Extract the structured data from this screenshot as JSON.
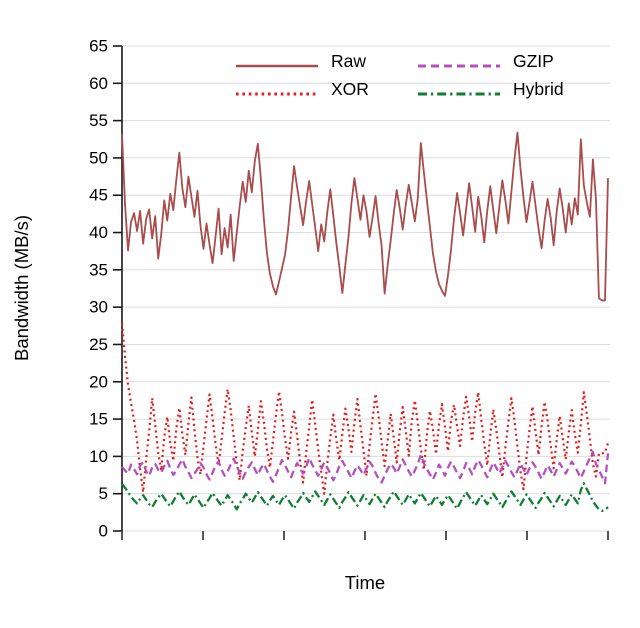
{
  "figure": {
    "title": "",
    "background": "#FFFFFF"
  },
  "chart_data": {
    "type": "line",
    "title": "",
    "xlabel": "Time",
    "ylabel": "Bandwidth (MB/s)",
    "ylim": [
      0,
      65
    ],
    "yticks": [
      0,
      5,
      10,
      15,
      20,
      25,
      30,
      35,
      40,
      45,
      50,
      55,
      60,
      65
    ],
    "x_tick_count": 7,
    "x_tick_labels": [],
    "grid": "horizontal",
    "grid_color": "#DCDCDC",
    "axis_color": "#1A1A1A",
    "tick_label_color": "#000000",
    "legend_position": "top-inside",
    "series": [
      {
        "name": "Raw",
        "color": "#A94C4C",
        "linestyle": "solid",
        "values": [
          53.2,
          43.8,
          37.6,
          41.4,
          42.6,
          40.2,
          42.9,
          38.5,
          41.8,
          43.1,
          39.2,
          42.2,
          36.5,
          39.8,
          44.3,
          41.6,
          45.2,
          43.0,
          47.1,
          50.7,
          45.9,
          43.4,
          47.5,
          44.8,
          42.1,
          45.6,
          40.9,
          37.8,
          41.2,
          38.4,
          35.9,
          39.5,
          43.2,
          37.1,
          40.6,
          38.0,
          42.4,
          36.2,
          39.9,
          43.6,
          46.8,
          44.1,
          48.3,
          45.4,
          49.6,
          51.9,
          47.2,
          41.8,
          37.3,
          34.5,
          32.8,
          31.7,
          33.4,
          35.2,
          37.0,
          40.3,
          44.7,
          48.9,
          46.1,
          43.5,
          41.0,
          44.2,
          46.9,
          43.8,
          40.7,
          37.5,
          41.1,
          38.8,
          42.7,
          45.8,
          42.3,
          38.6,
          35.4,
          31.9,
          35.7,
          39.3,
          43.9,
          47.3,
          44.5,
          41.7,
          45.0,
          42.8,
          39.4,
          42.0,
          44.9,
          41.3,
          38.2,
          31.8,
          35.6,
          38.9,
          42.5,
          45.7,
          43.3,
          40.4,
          43.7,
          46.4,
          44.0,
          41.5,
          44.6,
          52.0,
          48.1,
          44.4,
          40.8,
          37.2,
          34.8,
          33.1,
          32.2,
          31.5,
          34.3,
          37.7,
          41.9,
          45.3,
          42.6,
          39.6,
          43.1,
          46.6,
          43.4,
          40.1,
          44.8,
          42.2,
          38.7,
          42.9,
          46.2,
          43.0,
          39.9,
          43.5,
          47.0,
          44.3,
          41.2,
          45.5,
          49.8,
          53.4,
          48.6,
          44.7,
          41.4,
          44.1,
          46.8,
          43.6,
          40.5,
          37.9,
          41.6,
          44.5,
          42.0,
          38.3,
          42.8,
          45.9,
          43.2,
          40.0,
          43.9,
          41.1,
          44.6,
          42.4,
          52.5,
          46.3,
          44.0,
          42.1,
          49.8,
          44.5,
          31.2,
          30.9,
          30.9,
          47.3
        ]
      },
      {
        "name": "XOR",
        "color": "#E41A1C",
        "linestyle": "dotted",
        "values": [
          27.8,
          23.4,
          19.6,
          17.2,
          14.8,
          12.1,
          8.3,
          5.2,
          9.6,
          13.4,
          17.8,
          14.2,
          10.5,
          8.1,
          12.6,
          15.3,
          11.8,
          9.4,
          13.7,
          16.5,
          12.9,
          10.2,
          14.4,
          17.9,
          13.6,
          9.8,
          7.6,
          11.3,
          14.9,
          18.3,
          15.1,
          11.6,
          8.9,
          12.3,
          15.8,
          19.0,
          16.2,
          12.7,
          9.1,
          6.8,
          10.7,
          13.9,
          16.8,
          13.2,
          10.0,
          13.5,
          17.4,
          14.6,
          11.1,
          8.5,
          12.0,
          15.5,
          18.7,
          15.9,
          12.4,
          9.7,
          13.1,
          16.0,
          12.8,
          9.3,
          6.5,
          10.4,
          14.0,
          17.6,
          14.3,
          10.9,
          7.9,
          5.0,
          9.0,
          12.5,
          15.6,
          12.2,
          9.5,
          13.0,
          16.4,
          13.8,
          10.6,
          14.5,
          17.7,
          14.1,
          10.8,
          7.4,
          11.5,
          15.0,
          18.4,
          15.4,
          11.9,
          8.7,
          12.1,
          15.7,
          12.6,
          9.2,
          13.3,
          16.6,
          13.4,
          10.1,
          14.7,
          17.5,
          14.4,
          11.0,
          8.2,
          12.9,
          16.1,
          13.7,
          10.3,
          14.2,
          17.0,
          13.9,
          10.7,
          14.8,
          16.9,
          14.0,
          11.4,
          15.2,
          18.0,
          15.3,
          12.0,
          15.9,
          18.6,
          15.0,
          11.7,
          8.8,
          12.8,
          16.3,
          13.5,
          10.4,
          7.2,
          11.2,
          14.6,
          17.8,
          14.9,
          11.3,
          8.0,
          5.6,
          9.9,
          13.6,
          16.7,
          13.3,
          10.2,
          14.1,
          17.3,
          14.7,
          11.5,
          8.4,
          12.2,
          15.4,
          12.5,
          9.6,
          13.2,
          16.2,
          13.0,
          10.5,
          14.3,
          18.6,
          15.6,
          12.3,
          9.0,
          7.3,
          10.4,
          10.4,
          10.5,
          11.8
        ]
      },
      {
        "name": "GZIP",
        "color": "#B351BC",
        "linestyle": "dashed",
        "values": [
          8.6,
          8.1,
          7.7,
          8.9,
          8.3,
          7.6,
          8.8,
          9.2,
          8.0,
          7.4,
          8.5,
          9.0,
          8.2,
          7.8,
          8.7,
          9.4,
          8.4,
          7.5,
          8.1,
          8.9,
          9.6,
          8.6,
          7.9,
          7.1,
          7.7,
          8.3,
          9.1,
          8.5,
          7.6,
          6.9,
          7.8,
          8.8,
          9.3,
          8.2,
          7.4,
          8.0,
          8.9,
          9.7,
          8.7,
          7.8,
          7.0,
          7.9,
          8.6,
          9.2,
          8.3,
          7.5,
          8.4,
          9.0,
          8.1,
          7.3,
          6.6,
          7.5,
          8.5,
          9.5,
          8.8,
          8.0,
          7.2,
          8.2,
          9.1,
          8.4,
          7.7,
          8.6,
          9.8,
          8.9,
          8.1,
          7.4,
          8.3,
          9.2,
          8.5,
          7.7,
          6.8,
          7.6,
          8.7,
          9.4,
          8.6,
          7.9,
          7.1,
          8.0,
          8.8,
          8.2,
          7.5,
          8.4,
          9.3,
          8.7,
          7.8,
          7.0,
          6.5,
          7.4,
          8.3,
          9.0,
          8.5,
          7.7,
          8.6,
          9.6,
          8.8,
          8.0,
          7.3,
          8.1,
          9.0,
          10.2,
          9.1,
          8.3,
          7.6,
          6.9,
          7.8,
          8.9,
          8.2,
          7.4,
          8.5,
          9.3,
          8.6,
          7.8,
          7.1,
          8.0,
          9.1,
          8.4,
          7.6,
          8.7,
          9.5,
          8.8,
          8.0,
          7.2,
          8.2,
          9.2,
          8.5,
          7.7,
          8.6,
          9.4,
          8.7,
          7.9,
          7.2,
          8.1,
          9.0,
          8.3,
          7.5,
          8.4,
          9.2,
          8.6,
          7.8,
          7.0,
          7.9,
          8.8,
          8.1,
          7.3,
          8.2,
          9.1,
          8.4,
          7.7,
          8.5,
          9.3,
          8.7,
          7.9,
          7.1,
          8.0,
          8.9,
          9.8,
          10.6,
          9.0,
          8.2,
          7.3,
          6.4,
          10.4
        ]
      },
      {
        "name": "Hybrid",
        "color": "#0E7E33",
        "linestyle": "dashdot",
        "values": [
          6.3,
          5.8,
          5.2,
          4.6,
          4.1,
          3.7,
          4.3,
          4.8,
          4.2,
          3.6,
          3.2,
          3.9,
          4.5,
          5.0,
          4.4,
          3.8,
          3.3,
          4.0,
          4.7,
          5.3,
          4.6,
          4.0,
          3.5,
          4.2,
          4.9,
          4.3,
          3.7,
          3.1,
          3.8,
          4.4,
          5.1,
          4.5,
          3.9,
          3.4,
          4.1,
          4.8,
          4.2,
          3.6,
          2.9,
          3.7,
          4.3,
          5.0,
          4.4,
          3.8,
          4.5,
          5.2,
          4.6,
          4.0,
          3.4,
          4.1,
          4.7,
          4.1,
          3.5,
          4.2,
          4.8,
          4.2,
          3.6,
          3.0,
          3.8,
          4.4,
          5.1,
          4.5,
          3.9,
          4.6,
          5.3,
          4.7,
          4.1,
          3.5,
          4.2,
          4.9,
          4.3,
          3.7,
          3.1,
          3.9,
          4.5,
          5.2,
          4.6,
          4.0,
          3.4,
          4.1,
          4.8,
          4.2,
          3.6,
          4.3,
          5.0,
          4.4,
          3.8,
          3.2,
          4.0,
          4.6,
          5.3,
          4.7,
          4.1,
          3.5,
          4.2,
          4.9,
          4.3,
          3.7,
          4.4,
          5.1,
          4.5,
          3.9,
          3.3,
          4.0,
          4.7,
          4.1,
          3.5,
          4.2,
          4.8,
          4.2,
          3.6,
          3.0,
          3.8,
          4.5,
          5.2,
          4.6,
          4.0,
          3.4,
          4.1,
          4.8,
          4.2,
          3.6,
          4.3,
          5.0,
          4.4,
          3.8,
          3.2,
          3.9,
          4.6,
          5.3,
          4.7,
          4.1,
          3.5,
          4.2,
          4.9,
          4.3,
          3.7,
          3.1,
          3.8,
          4.4,
          5.1,
          4.5,
          3.9,
          3.3,
          4.0,
          4.7,
          4.1,
          3.5,
          4.2,
          4.9,
          4.3,
          3.7,
          5.5,
          6.4,
          5.6,
          4.8,
          4.0,
          3.4,
          2.9,
          2.7,
          2.8,
          3.2
        ]
      }
    ]
  }
}
